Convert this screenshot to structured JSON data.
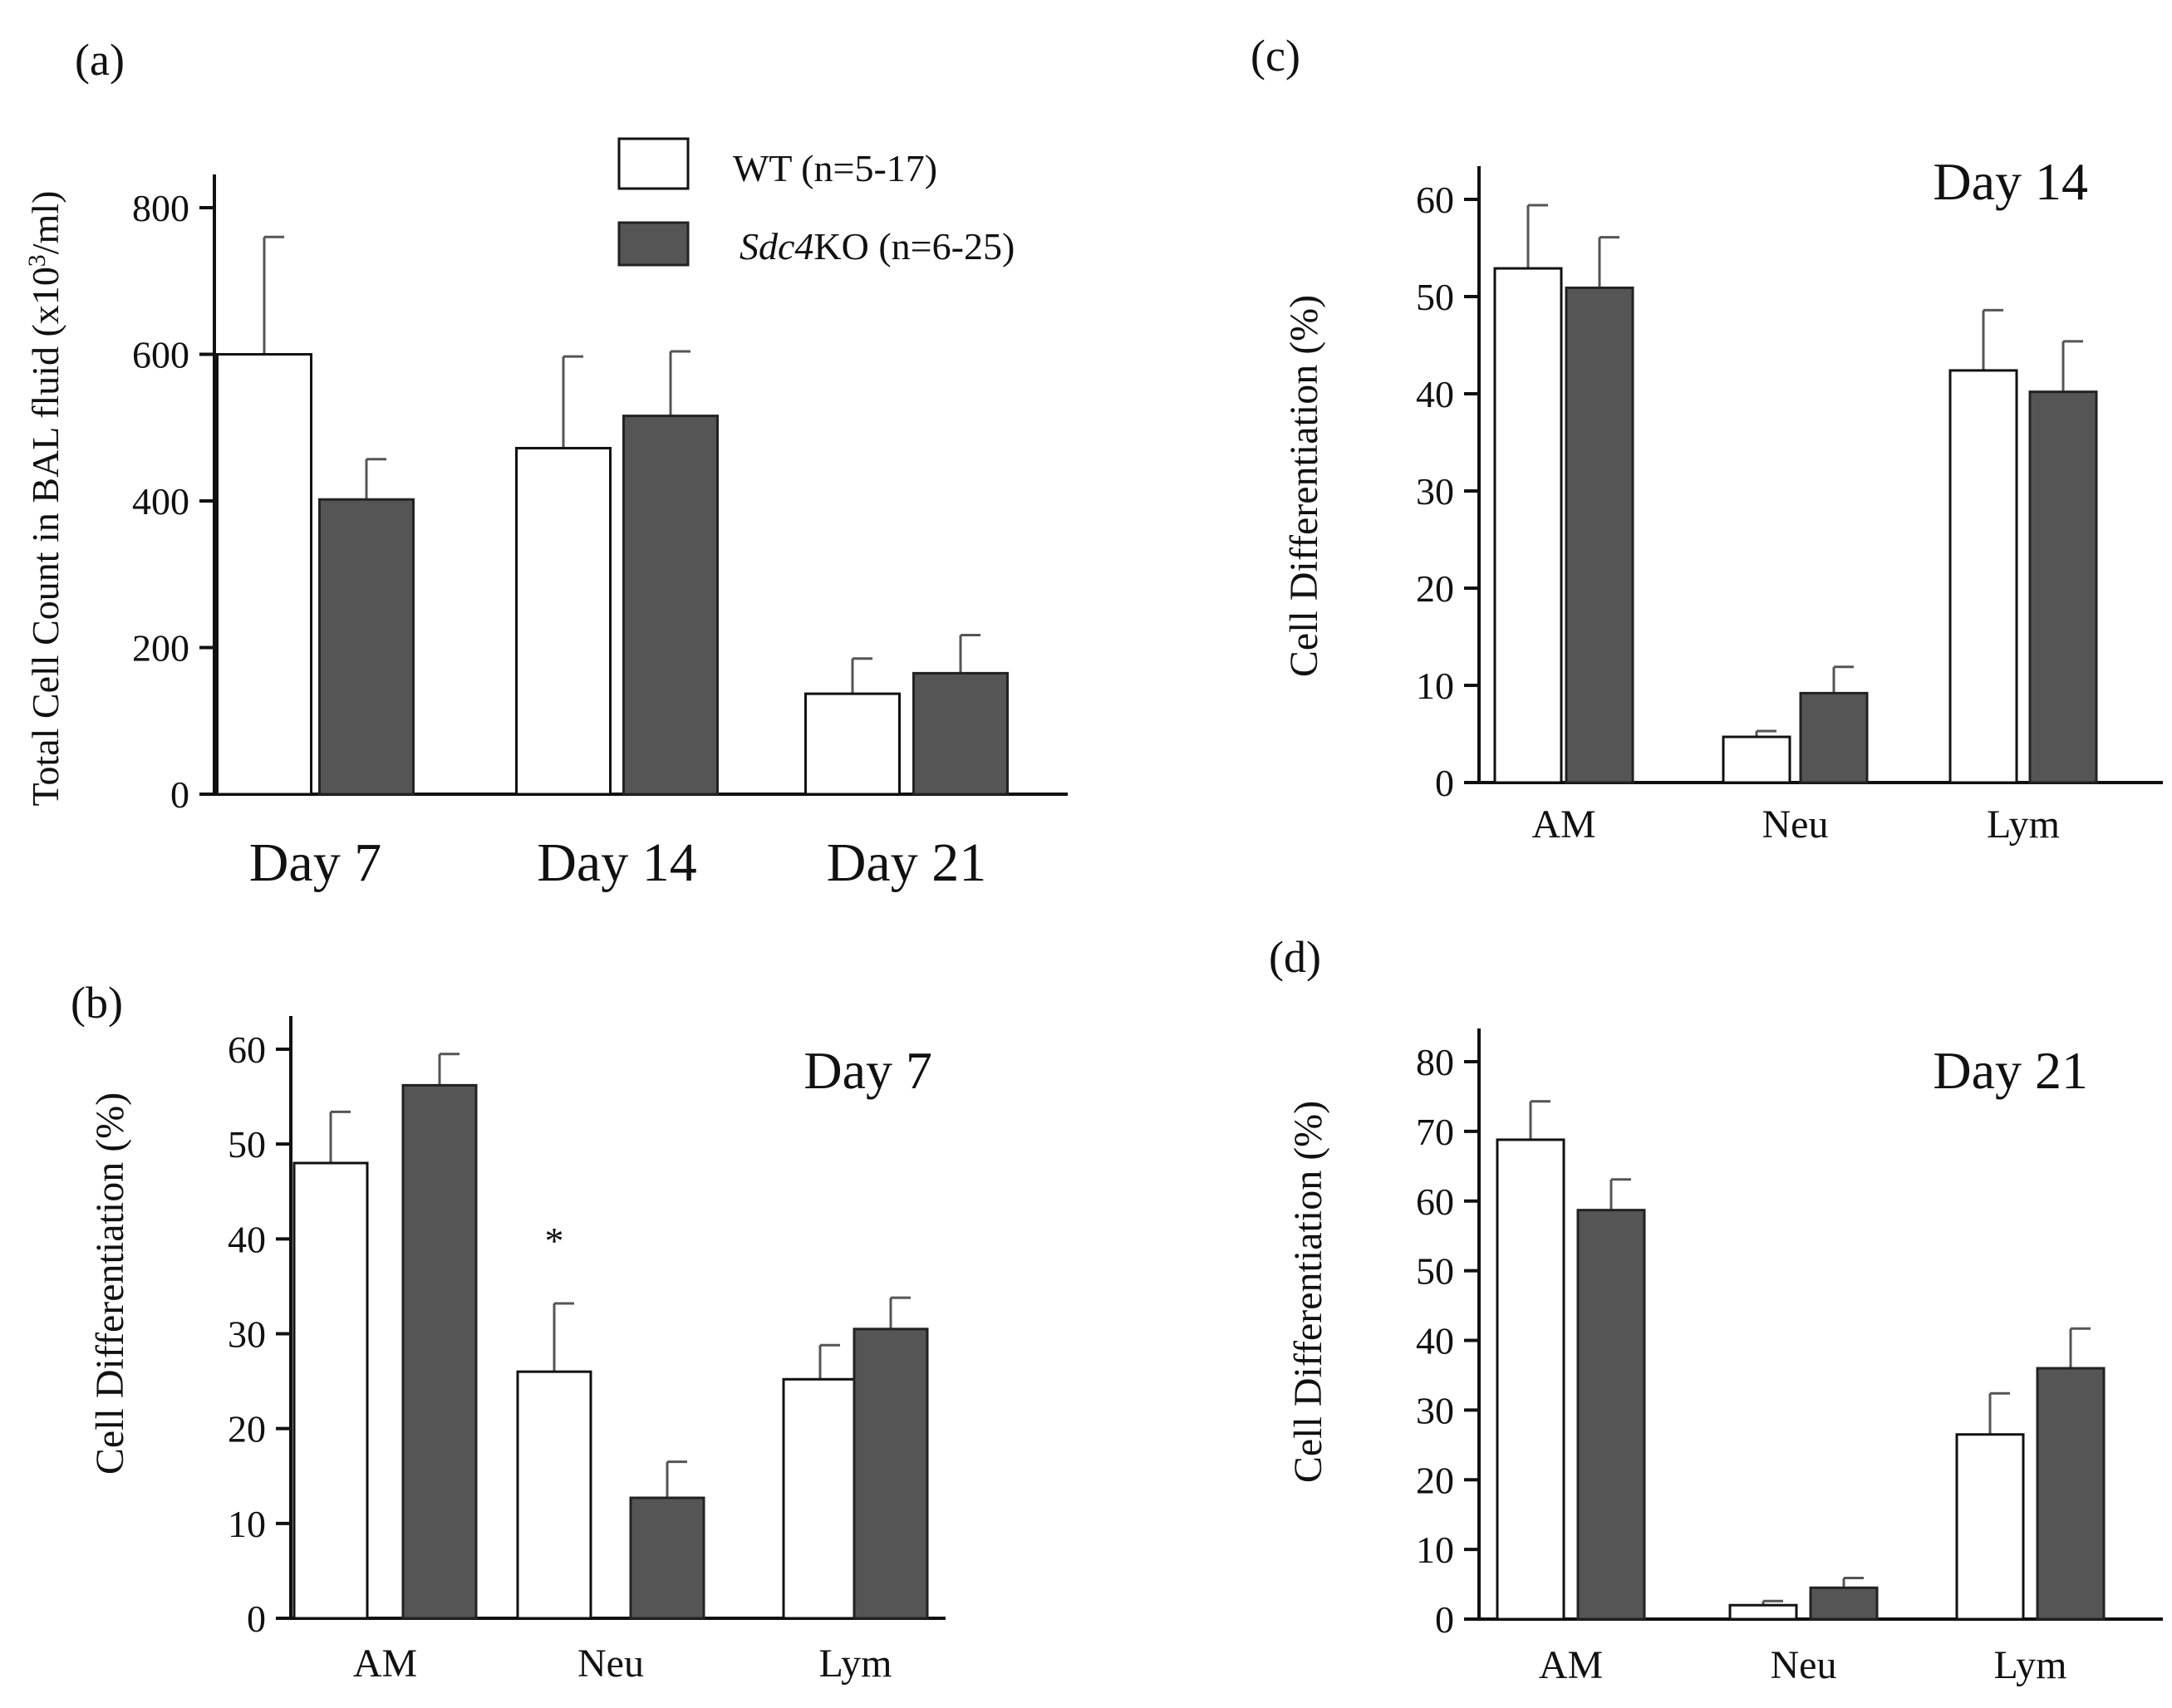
{
  "legend": {
    "wt_label": "WT (n=5-17)",
    "ko_label_italic": "Sdc4",
    "ko_label_rest": "KO (n=6-25)"
  },
  "colors": {
    "wt": "#ffffff",
    "ko": "#555555",
    "axis": "#111111",
    "error": "#555555"
  },
  "chart_data": [
    {
      "id": "a",
      "panel_label": "(a)",
      "type": "bar",
      "title": "",
      "ylabel": "Total Cell Count in BAL fluid (x10³/ml)",
      "ylabel_main": "Total Cell Count in BAL fluid (x10",
      "ylabel_sup": "3",
      "ylabel_end": "/ml)",
      "ylim": [
        0,
        800
      ],
      "yticks": [
        0,
        200,
        400,
        600,
        800
      ],
      "categories": [
        "Day 7",
        "Day 14",
        "Day 21"
      ],
      "series": [
        {
          "name": "WT",
          "values": [
            600,
            472,
            137
          ],
          "errors": [
            160,
            125,
            48
          ]
        },
        {
          "name": "Sdc4KO",
          "values": [
            402,
            516,
            165
          ],
          "errors": [
            55,
            88,
            52
          ]
        }
      ],
      "annotations": []
    },
    {
      "id": "b",
      "panel_label": "(b)",
      "type": "bar",
      "title": "Day 7",
      "ylabel": "Cell Differentiation (%)",
      "ylim": [
        0,
        60
      ],
      "yticks": [
        0,
        10,
        20,
        30,
        40,
        50,
        60
      ],
      "categories": [
        "AM",
        "Neu",
        "Lym"
      ],
      "series": [
        {
          "name": "WT",
          "values": [
            48,
            26,
            25.2
          ],
          "errors": [
            5.4,
            7.2,
            3.6
          ]
        },
        {
          "name": "Sdc4KO",
          "values": [
            56.2,
            12.7,
            30.5
          ],
          "errors": [
            3.3,
            3.8,
            3.3
          ]
        }
      ],
      "annotations": [
        {
          "text": "*",
          "category": "Neu",
          "series": "WT"
        }
      ]
    },
    {
      "id": "c",
      "panel_label": "(c)",
      "type": "bar",
      "title": "Day 14",
      "ylabel": "Cell Differentiation (%)",
      "ylim": [
        0,
        60
      ],
      "yticks": [
        0,
        10,
        20,
        30,
        40,
        50,
        60
      ],
      "categories": [
        "AM",
        "Neu",
        "Lym"
      ],
      "series": [
        {
          "name": "WT",
          "values": [
            52.9,
            4.7,
            42.4
          ],
          "errors": [
            6.5,
            0.6,
            6.2
          ]
        },
        {
          "name": "Sdc4KO",
          "values": [
            50.9,
            9.2,
            40.2
          ],
          "errors": [
            5.2,
            2.7,
            5.2
          ]
        }
      ],
      "annotations": []
    },
    {
      "id": "d",
      "panel_label": "(d)",
      "type": "bar",
      "title": "Day 21",
      "ylabel": "Cell Differentiation (%)",
      "ylim": [
        0,
        80
      ],
      "yticks": [
        0,
        10,
        20,
        30,
        40,
        50,
        60,
        70,
        80
      ],
      "categories": [
        "AM",
        "Neu",
        "Lym"
      ],
      "series": [
        {
          "name": "WT",
          "values": [
            68.8,
            2,
            26.5
          ],
          "errors": [
            5.5,
            0.6,
            5.9
          ]
        },
        {
          "name": "Sdc4KO",
          "values": [
            58.7,
            4.5,
            36
          ],
          "errors": [
            4.4,
            1.4,
            5.7
          ]
        }
      ],
      "annotations": []
    }
  ]
}
